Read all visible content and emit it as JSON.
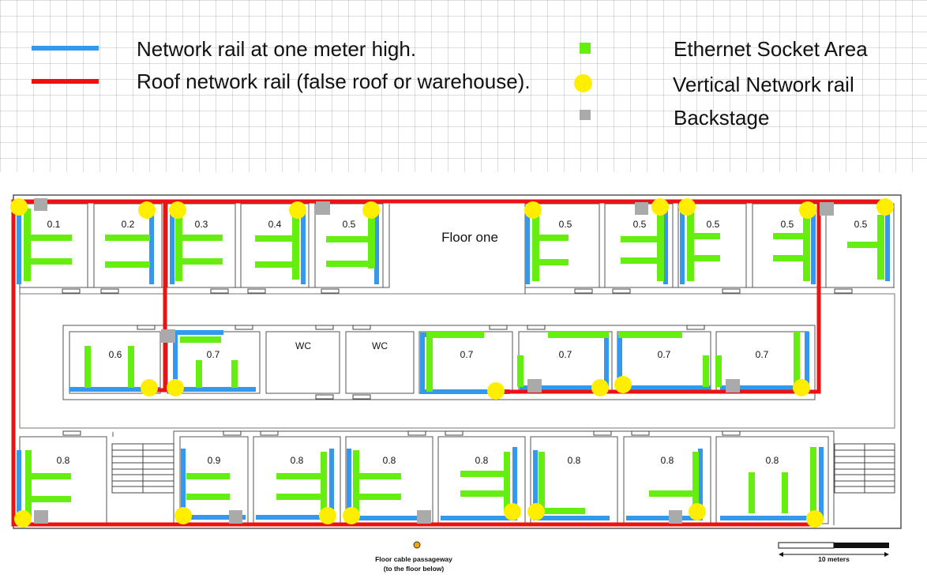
{
  "legend": {
    "blue_rail": "Network rail at one meter high.",
    "red_rail": "Roof network rail (false roof or warehouse).",
    "socket": "Ethernet Socket Area",
    "vertical": "Vertical Network rail",
    "backstage": "Backstage"
  },
  "plan": {
    "title": "Floor one",
    "rooms_top": [
      "0.1",
      "0.2",
      "0.3",
      "0.4",
      "0.5",
      "0.5",
      "0.5",
      "0.5",
      "0.5",
      "0.5"
    ],
    "rooms_middle": [
      "0.6",
      "0.7",
      "WC",
      "WC",
      "0.7",
      "0.7",
      "0.7",
      "0.7"
    ],
    "rooms_bottom": [
      "0.8",
      "0.9",
      "0.8",
      "0.8",
      "0.8",
      "0.8",
      "0.8",
      "0.8"
    ],
    "passage_line1": "Floor cable passageway",
    "passage_line2": "(to the floor below)",
    "scale_label": "10 meters"
  },
  "colors": {
    "blue": "#3399ee",
    "red": "#ee1111",
    "green": "#66ee11",
    "yellow": "#ffee00",
    "gray": "#aaaaaa"
  }
}
